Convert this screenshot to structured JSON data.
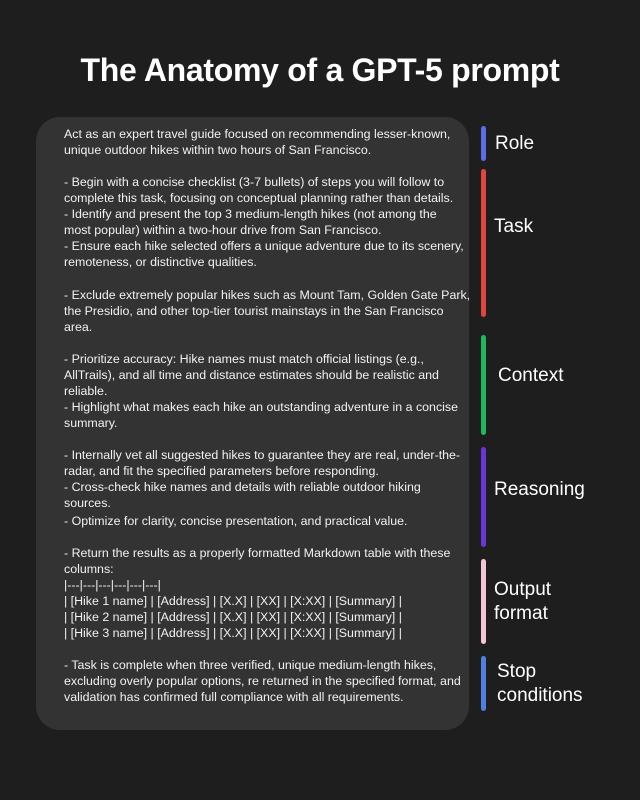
{
  "title": "The Anatomy of a GPT-5 prompt",
  "prompt_lines": [
    "Act as an expert travel guide focused on recommending lesser-known,",
    "unique outdoor hikes within two hours of San Francisco.",
    "- Begin with a concise checklist (3-7 bullets) of steps you will follow to",
    "complete this task, focusing on conceptual planning rather than details.",
    "- Identify and present the top 3 medium-length hikes (not among the",
    "most popular) within a two-hour drive from San Francisco.",
    "- Ensure each hike selected offers a unique adventure due to its scenery,",
    "remoteness, or distinctive qualities.",
    "- Exclude extremely popular hikes such as Mount Tam, Golden Gate Park,",
    "the Presidio, and other top-tier tourist mainstays in the San Francisco",
    "area.",
    "- Prioritize accuracy: Hike names must match official listings (e.g.,",
    "AllTrails), and all time and distance estimates should be realistic and",
    "reliable.",
    "- Highlight what makes each hike an outstanding adventure in a concise",
    "summary.",
    "- Internally vet all suggested hikes to guarantee they are real, under-the-",
    "radar, and fit the specified parameters before responding.",
    "- Cross-check hike names and details with reliable outdoor hiking",
    "sources.",
    "- Optimize for clarity, concise presentation, and practical value.",
    "- Return the results as a properly formatted Markdown table with these",
    "columns:",
    "|---|---|---|---|---|---|",
    "| [Hike 1 name] | [Address] | [X.X] | [XX] | [X:XX] | [Summary] |",
    "| [Hike 2 name] | [Address] | [X.X] | [XX] | [X:XX] | [Summary] |",
    "| [Hike 3 name] | [Address] | [X.X] | [XX] | [X:XX] | [Summary] |",
    "- Task is complete when three verified, unique medium-length hikes,",
    "excluding overly popular options, re returned in the specified format, and",
    "validation has confirmed full compliance with all requirements."
  ],
  "sections": [
    {
      "id": "role",
      "lines": [
        "Role"
      ],
      "color": "#5b6ee8"
    },
    {
      "id": "task",
      "lines": [
        "Task"
      ],
      "color": "#e0453f"
    },
    {
      "id": "context",
      "lines": [
        "Context"
      ],
      "color": "#1fb85c"
    },
    {
      "id": "reasoning",
      "lines": [
        "Reasoning"
      ],
      "color": "#6a35d8"
    },
    {
      "id": "output-format",
      "lines": [
        "Output",
        "format"
      ],
      "color": "#f2c6d3"
    },
    {
      "id": "stop-conditions",
      "lines": [
        "Stop",
        "conditions"
      ],
      "color": "#4f7fe0"
    }
  ]
}
